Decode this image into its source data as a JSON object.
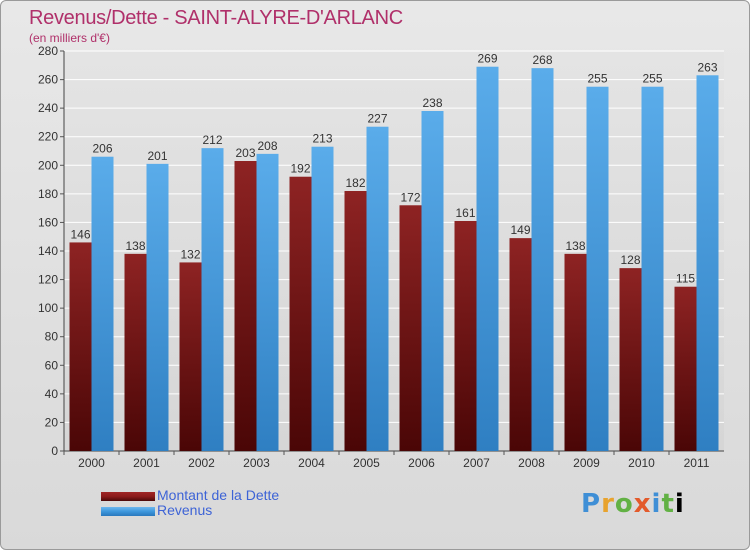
{
  "header": {
    "title": "Revenus/Dette - SAINT-ALYRE-D'ARLANC",
    "subtitle": "(en milliers d'€)"
  },
  "logo": "Proxiti",
  "colors": {
    "dette": "#8b1a1a",
    "revenus": "#3d97dc",
    "label": "#3d63d6",
    "title": "#b0306a"
  },
  "chart_data": {
    "type": "bar",
    "title": "Revenus/Dette - SAINT-ALYRE-D'ARLANC",
    "ylabel": "(en milliers d'€)",
    "xlabel": "",
    "ylim": [
      0,
      280
    ],
    "ytick_step": 20,
    "grid": true,
    "legend_placement": "bottom-left",
    "categories": [
      "2000",
      "2001",
      "2002",
      "2003",
      "2004",
      "2005",
      "2006",
      "2007",
      "2008",
      "2009",
      "2010",
      "2011"
    ],
    "series": [
      {
        "name": "Montant de la Dette",
        "values": [
          146,
          138,
          132,
          203,
          192,
          182,
          172,
          161,
          149,
          138,
          128,
          115
        ]
      },
      {
        "name": "Revenus",
        "values": [
          206,
          201,
          212,
          208,
          213,
          227,
          238,
          269,
          268,
          255,
          255,
          263
        ]
      }
    ]
  }
}
